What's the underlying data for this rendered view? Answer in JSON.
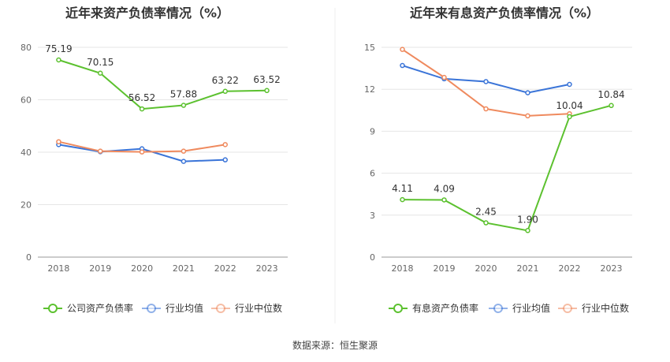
{
  "source": "数据来源：恒生聚源",
  "chart_data": [
    {
      "type": "line",
      "title": "近年来资产负债率情况（%）",
      "categories": [
        "2018",
        "2019",
        "2020",
        "2021",
        "2022",
        "2023"
      ],
      "ylim": [
        0,
        80
      ],
      "yticks": [
        0,
        20,
        40,
        60,
        80
      ],
      "legend_position": "bottom",
      "series": [
        {
          "name": "公司资产负债率",
          "color": "#5cc12f",
          "values": [
            75.19,
            70.15,
            56.52,
            57.88,
            63.22,
            63.52
          ],
          "labels": [
            "75.19",
            "70.15",
            "56.52",
            "57.88",
            "63.22",
            "63.52"
          ]
        },
        {
          "name": "行业均值",
          "color": "#3a74d8",
          "values": [
            42.9,
            40.2,
            41.3,
            36.5,
            37.1,
            null
          ]
        },
        {
          "name": "行业中位数",
          "color": "#ef8a5e",
          "values": [
            44.0,
            40.4,
            40.1,
            40.4,
            42.9,
            null
          ]
        }
      ]
    },
    {
      "type": "line",
      "title": "近年来有息资产负债率情况（%）",
      "categories": [
        "2018",
        "2019",
        "2020",
        "2021",
        "2022",
        "2023"
      ],
      "ylim": [
        0,
        15
      ],
      "yticks": [
        0,
        3,
        6,
        9,
        12,
        15
      ],
      "legend_position": "bottom",
      "series": [
        {
          "name": "有息资产负债率",
          "color": "#5cc12f",
          "values": [
            4.11,
            4.09,
            2.45,
            1.9,
            10.04,
            10.84
          ],
          "labels": [
            "4.11",
            "4.09",
            "2.45",
            "1.90",
            "10.04",
            "10.84"
          ]
        },
        {
          "name": "行业均值",
          "color": "#3a74d8",
          "values": [
            13.7,
            12.75,
            12.55,
            11.75,
            12.35,
            null
          ]
        },
        {
          "name": "行业中位数",
          "color": "#ef8a5e",
          "values": [
            14.85,
            12.85,
            10.6,
            10.1,
            10.25,
            null
          ]
        }
      ]
    }
  ]
}
